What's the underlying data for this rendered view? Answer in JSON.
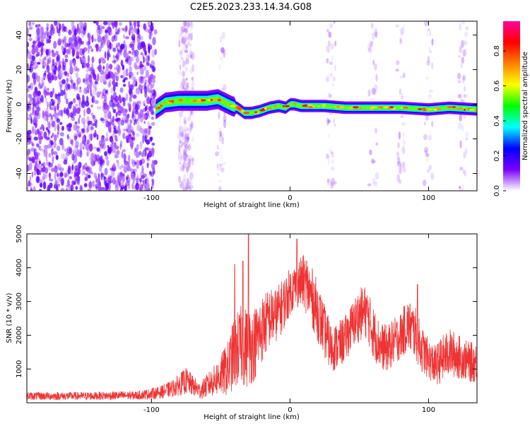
{
  "title": "C2E5.2023.233.14.34.G08",
  "chart_data": [
    {
      "type": "heatmap",
      "xlabel": "Height of straight line (km)",
      "ylabel": "Frequency (Hz)",
      "xlim": [
        -190,
        135
      ],
      "ylim": [
        -50,
        48
      ],
      "x_ticks": [
        -100,
        0,
        100
      ],
      "y_ticks": [
        -40,
        -20,
        0,
        20,
        40
      ],
      "colorbar": {
        "label": "Normalized spectral amplitude",
        "range": [
          0,
          1
        ],
        "ticks": [
          "0.0",
          "0.2",
          "0.4",
          "0.6",
          "0.8"
        ],
        "colormap": [
          "#ffffff",
          "#7a00ff",
          "#0000ff",
          "#00ffff",
          "#00ff00",
          "#ffff00",
          "#ff8000",
          "#ff0000",
          "#ff00a0"
        ]
      },
      "ridge": {
        "x": [
          -97,
          -90,
          -80,
          -70,
          -60,
          -52,
          -47,
          -42,
          -38,
          -33,
          -28,
          -22,
          -15,
          -8,
          -3,
          0,
          3,
          8,
          15,
          25,
          40,
          60,
          80,
          100,
          115,
          135
        ],
        "freq": [
          -3,
          1,
          2,
          2,
          2,
          3,
          1,
          -1,
          -2,
          -5,
          -5,
          -4,
          -2,
          -1,
          -2,
          0,
          0,
          -1,
          -1,
          -1,
          -2,
          -2,
          -2,
          -3,
          -2,
          -3
        ]
      },
      "noise_regions": [
        {
          "x_range": [
            -190,
            -97
          ],
          "density": "high"
        },
        {
          "x_range": [
            -80,
            -70
          ],
          "density": "medium"
        },
        {
          "x_range": [
            -97,
            135
          ],
          "density": "sparse vertical streaks"
        }
      ]
    },
    {
      "type": "line",
      "xlabel": "Height of straight line (km)",
      "ylabel": "SNR (10 * v/v)",
      "xlim": [
        -190,
        135
      ],
      "ylim": [
        0,
        5000
      ],
      "x_ticks": [
        -100,
        0,
        100
      ],
      "y_ticks": [
        1000,
        2000,
        3000,
        4000,
        5000
      ],
      "color": "#ee3333",
      "envelope": {
        "x": [
          -190,
          -150,
          -110,
          -95,
          -85,
          -75,
          -70,
          -65,
          -55,
          -45,
          -40,
          -35,
          -30,
          -25,
          -20,
          -15,
          -10,
          -5,
          0,
          5,
          10,
          15,
          20,
          25,
          30,
          35,
          40,
          45,
          50,
          55,
          60,
          65,
          70,
          75,
          80,
          85,
          90,
          95,
          100,
          105,
          110,
          115,
          120,
          125,
          130,
          135
        ],
        "center": [
          200,
          200,
          220,
          300,
          420,
          650,
          500,
          350,
          650,
          1000,
          1500,
          1700,
          1600,
          1800,
          2200,
          2500,
          2600,
          2900,
          3300,
          3500,
          3600,
          3200,
          2700,
          2100,
          1600,
          1700,
          1900,
          2300,
          2600,
          2700,
          2100,
          1700,
          1600,
          1800,
          2000,
          2300,
          2100,
          1600,
          1300,
          1100,
          1300,
          1500,
          1400,
          1300,
          1200,
          1200
        ],
        "spread": [
          120,
          120,
          130,
          180,
          250,
          400,
          300,
          250,
          450,
          800,
          1100,
          1200,
          1200,
          1100,
          1000,
          900,
          800,
          800,
          700,
          700,
          800,
          900,
          900,
          800,
          700,
          700,
          700,
          700,
          800,
          800,
          800,
          700,
          700,
          700,
          700,
          800,
          800,
          700,
          600,
          600,
          700,
          700,
          700,
          600,
          600,
          600
        ]
      },
      "spikes": [
        {
          "x": -40,
          "y": 4100
        },
        {
          "x": -34,
          "y": 4200
        },
        {
          "x": -30,
          "y": 5000
        },
        {
          "x": 5,
          "y": 4850
        },
        {
          "x": 12,
          "y": 4200
        },
        {
          "x": 92,
          "y": 3500
        }
      ]
    }
  ]
}
